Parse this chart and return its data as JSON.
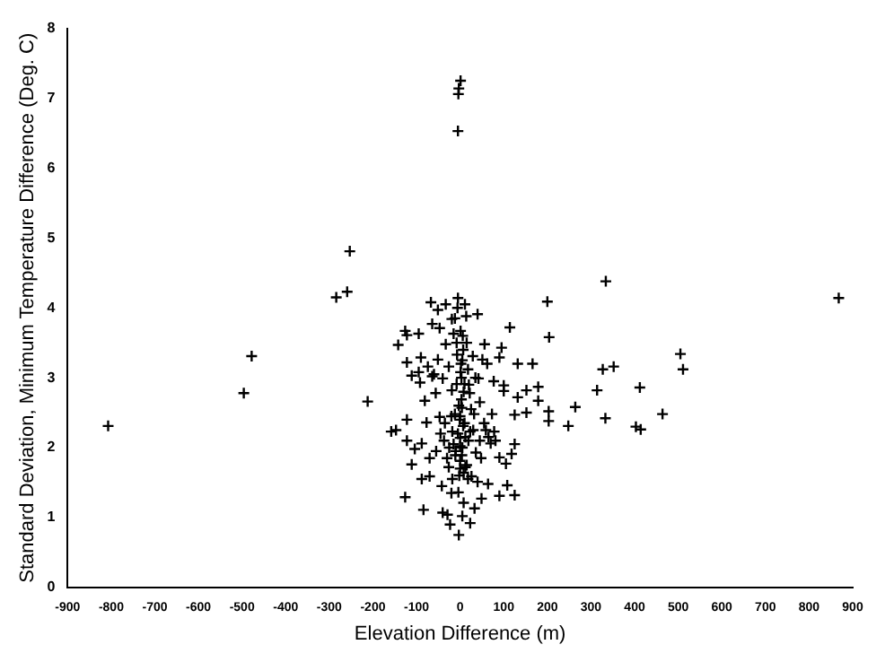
{
  "chart_data": {
    "type": "scatter",
    "xlabel": "Elevation Difference (m)",
    "ylabel": "Standard Deviation, Minimum Temperature Difference (Deg. C)",
    "xlim": [
      -900,
      900
    ],
    "ylim": [
      0,
      8
    ],
    "xticks": [
      -900,
      -800,
      -700,
      -600,
      -500,
      -400,
      -300,
      -200,
      -100,
      0,
      100,
      200,
      300,
      400,
      500,
      600,
      700,
      800,
      900
    ],
    "yticks": [
      0,
      1,
      2,
      3,
      4,
      5,
      6,
      7,
      8
    ],
    "grid": false,
    "legend": false,
    "marker": "cross",
    "series": [
      {
        "color": "#000000",
        "x": [
          -807,
          -496,
          -478,
          -284,
          -259,
          -253,
          -212,
          -5,
          -4,
          -3,
          1,
          868,
          334,
          200,
          204,
          505,
          511,
          327,
          352,
          314,
          412,
          464,
          333,
          403,
          414,
          264,
          248,
          203,
          203,
          179,
          166,
          152,
          132,
          114,
          95,
          132,
          125,
          152,
          179,
          125,
          118,
          125,
          90,
          108,
          105,
          90,
          100,
          100,
          90,
          -158,
          -147,
          -142,
          -126,
          -122,
          -122,
          -122,
          -126,
          -122,
          -111,
          -111,
          -104,
          -95,
          -95,
          -90,
          -92,
          -88,
          -88,
          -84,
          -81,
          -77,
          -74,
          -70,
          -70,
          -67,
          -64,
          -64,
          -56,
          -51,
          -51,
          -47,
          -47,
          -42,
          -40,
          -40,
          -37,
          -33,
          -33,
          -29,
          -26,
          -26,
          -23,
          -19,
          -19,
          -18,
          -18,
          -15,
          -12,
          -11,
          -8,
          -7,
          -5,
          -4,
          -3,
          -1,
          0,
          0,
          0,
          1,
          1,
          3,
          4,
          4,
          5,
          5,
          7,
          8,
          8,
          10,
          11,
          12,
          14,
          15,
          18,
          19,
          22,
          23,
          23,
          26,
          29,
          32,
          33,
          36,
          40,
          40,
          42,
          45,
          48,
          49,
          51,
          56,
          59,
          62,
          64,
          70,
          73,
          77,
          78,
          81,
          -5,
          5,
          -10,
          10,
          -3,
          3,
          -8,
          8,
          0,
          0,
          2,
          -2,
          12,
          -15,
          15,
          -20,
          20,
          -25,
          25,
          -30,
          30,
          -35,
          35,
          -45,
          45,
          -55,
          55,
          -60,
          65,
          -12,
          6,
          -6,
          7,
          -20,
          18
        ],
        "values": [
          2.31,
          2.78,
          3.31,
          4.15,
          4.23,
          4.81,
          2.66,
          6.53,
          7.06,
          7.14,
          7.25,
          4.14,
          4.38,
          4.09,
          3.58,
          3.34,
          3.12,
          3.12,
          3.16,
          2.82,
          2.86,
          2.48,
          2.42,
          2.3,
          2.26,
          2.58,
          2.31,
          2.52,
          2.38,
          2.87,
          3.2,
          2.82,
          3.2,
          3.72,
          3.43,
          2.72,
          2.47,
          2.5,
          2.67,
          2.05,
          1.91,
          1.32,
          1.31,
          1.46,
          1.77,
          1.86,
          2.81,
          2.89,
          3.29,
          2.23,
          2.25,
          3.47,
          3.67,
          3.61,
          3.22,
          2.4,
          1.29,
          2.1,
          3.03,
          1.76,
          1.98,
          3.08,
          3.63,
          3.29,
          2.93,
          2.06,
          1.55,
          1.11,
          2.67,
          2.36,
          3.16,
          1.85,
          1.59,
          4.08,
          3.77,
          3.02,
          2.78,
          3.97,
          3.26,
          3.71,
          2.44,
          1.45,
          1.07,
          2.99,
          2.1,
          4.05,
          3.48,
          1.04,
          3.16,
          1.72,
          0.9,
          2.82,
          3.84,
          2.23,
          1.55,
          3.63,
          2.48,
          1.89,
          2.91,
          3.33,
          4.14,
          1.36,
          0.75,
          2.4,
          2.02,
          2.14,
          1.81,
          3.08,
          3.67,
          2.69,
          2.57,
          1.89,
          1.02,
          3.25,
          2.31,
          1.64,
          1.21,
          2.91,
          4.05,
          1.72,
          3.88,
          3.5,
          3.12,
          2.1,
          2.78,
          2.23,
          0.92,
          1.59,
          3.31,
          2.48,
          1.13,
          1.93,
          3.91,
          1.51,
          2.99,
          2.65,
          1.85,
          1.27,
          3.26,
          3.48,
          2.25,
          3.2,
          1.48,
          2.06,
          2.48,
          2.95,
          2.23,
          2.1,
          2.2,
          2.0,
          1.95,
          2.35,
          2.6,
          3.0,
          3.5,
          2.8,
          1.7,
          2.45,
          3.2,
          1.6,
          2.15,
          2.05,
          1.75,
          2.45,
          2.9,
          2.0,
          2.55,
          1.85,
          2.25,
          2.35,
          3.0,
          2.2,
          2.1,
          1.95,
          2.35,
          3.05,
          2.15,
          3.85,
          3.6,
          4.0,
          3.4,
          1.35,
          1.55
        ]
      }
    ]
  }
}
